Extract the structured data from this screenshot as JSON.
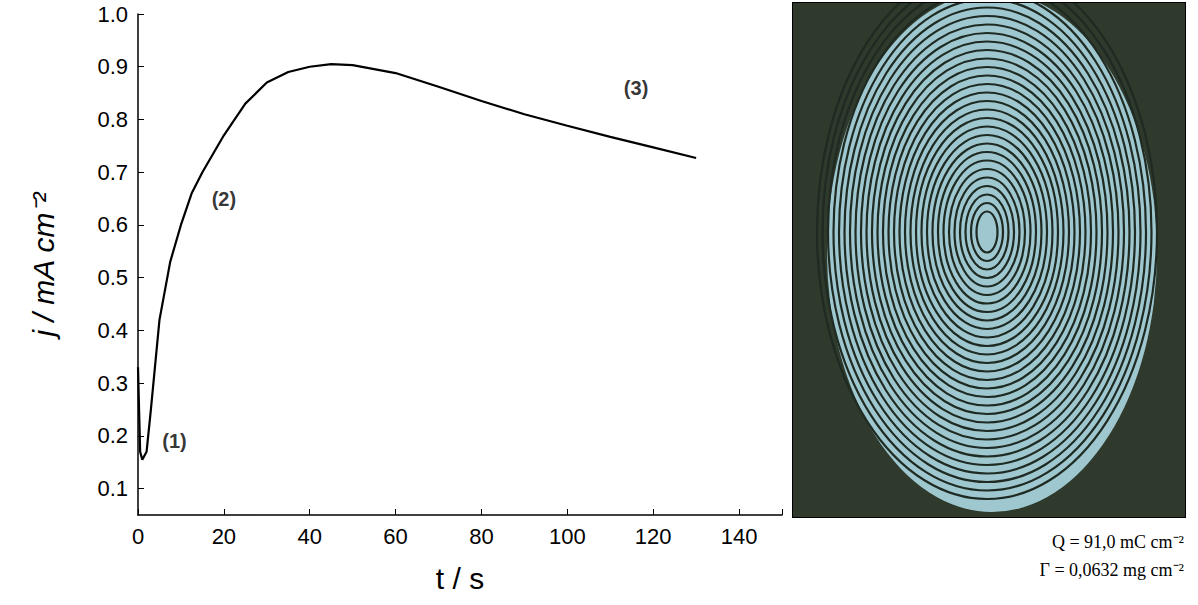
{
  "chart_data": {
    "type": "line",
    "x_label": "t / s",
    "y_label": "j / mA cm⁻²",
    "x": [
      0,
      0.5,
      1,
      2,
      3,
      5,
      7.5,
      10,
      12.5,
      15,
      20,
      25,
      30,
      35,
      40,
      45,
      50,
      60,
      70,
      80,
      90,
      100,
      110,
      120,
      130
    ],
    "values": [
      0.33,
      0.17,
      0.155,
      0.17,
      0.25,
      0.42,
      0.53,
      0.6,
      0.66,
      0.7,
      0.77,
      0.83,
      0.87,
      0.89,
      0.9,
      0.905,
      0.903,
      0.888,
      0.862,
      0.835,
      0.81,
      0.788,
      0.767,
      0.747,
      0.727
    ],
    "color": "#000000",
    "xlim": [
      0,
      150
    ],
    "xticks": [
      0,
      20,
      40,
      60,
      80,
      100,
      120,
      140
    ],
    "ylim": [
      0.05,
      1
    ],
    "yticks": [
      0.1,
      0.2,
      0.3,
      0.4,
      0.5,
      0.6,
      0.7,
      0.8,
      0.9,
      {
        "value": 1,
        "label": "1.0"
      }
    ],
    "grid": false,
    "annotations": [
      {
        "text": "(1)",
        "x": 4.5,
        "y": 0.19
      },
      {
        "text": "(2)",
        "x": 16,
        "y": 0.65
      },
      {
        "text": "(3)",
        "x": 112,
        "y": 0.86
      }
    ]
  },
  "captions": [
    "Q = 91,0 mC cm⁻²",
    "Γ = 0,0632 mg cm⁻²"
  ]
}
